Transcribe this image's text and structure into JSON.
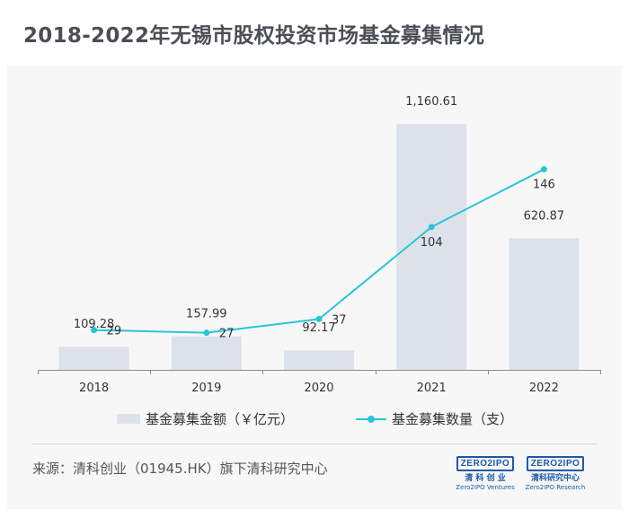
{
  "title": "2018-2022年无锡市股权投资市场基金募集情况",
  "colors": {
    "bar": "#dde2ea",
    "line": "#2bc4d8",
    "axis": "#8c8c8c",
    "label": "#333333",
    "brand": "#1d5aa8"
  },
  "chart_data": {
    "type": "bar",
    "title": "2018-2022年无锡市股权投资市场基金募集情况",
    "categories": [
      "2018",
      "2019",
      "2020",
      "2021",
      "2022"
    ],
    "series": [
      {
        "name": "基金募集金额（￥亿元）",
        "type": "bar",
        "values": [
          109.28,
          157.99,
          92.17,
          1160.61,
          620.87
        ],
        "labels": [
          "109.28",
          "157.99",
          "92.17",
          "1,160.61",
          "620.87"
        ]
      },
      {
        "name": "基金募集数量（支）",
        "type": "line",
        "values": [
          29,
          27,
          37,
          104,
          146
        ],
        "labels": [
          "29",
          "27",
          "37",
          "104",
          "146"
        ]
      }
    ],
    "xlabel": "",
    "ylabel": "",
    "bar_ylim": [
      0,
      1160.61
    ],
    "line_ylim": [
      0,
      230
    ],
    "legend": "bottom"
  },
  "source": "来源：清科创业（01945.HK）旗下清科研究中心",
  "logos": [
    {
      "mark": "ZERO2IPO",
      "cn": "清 科 创 业",
      "en": "Zero2IPO Ventures"
    },
    {
      "mark": "ZERO2IPO",
      "cn": "清科研究中心",
      "en": "Zero2IPO Research"
    }
  ]
}
